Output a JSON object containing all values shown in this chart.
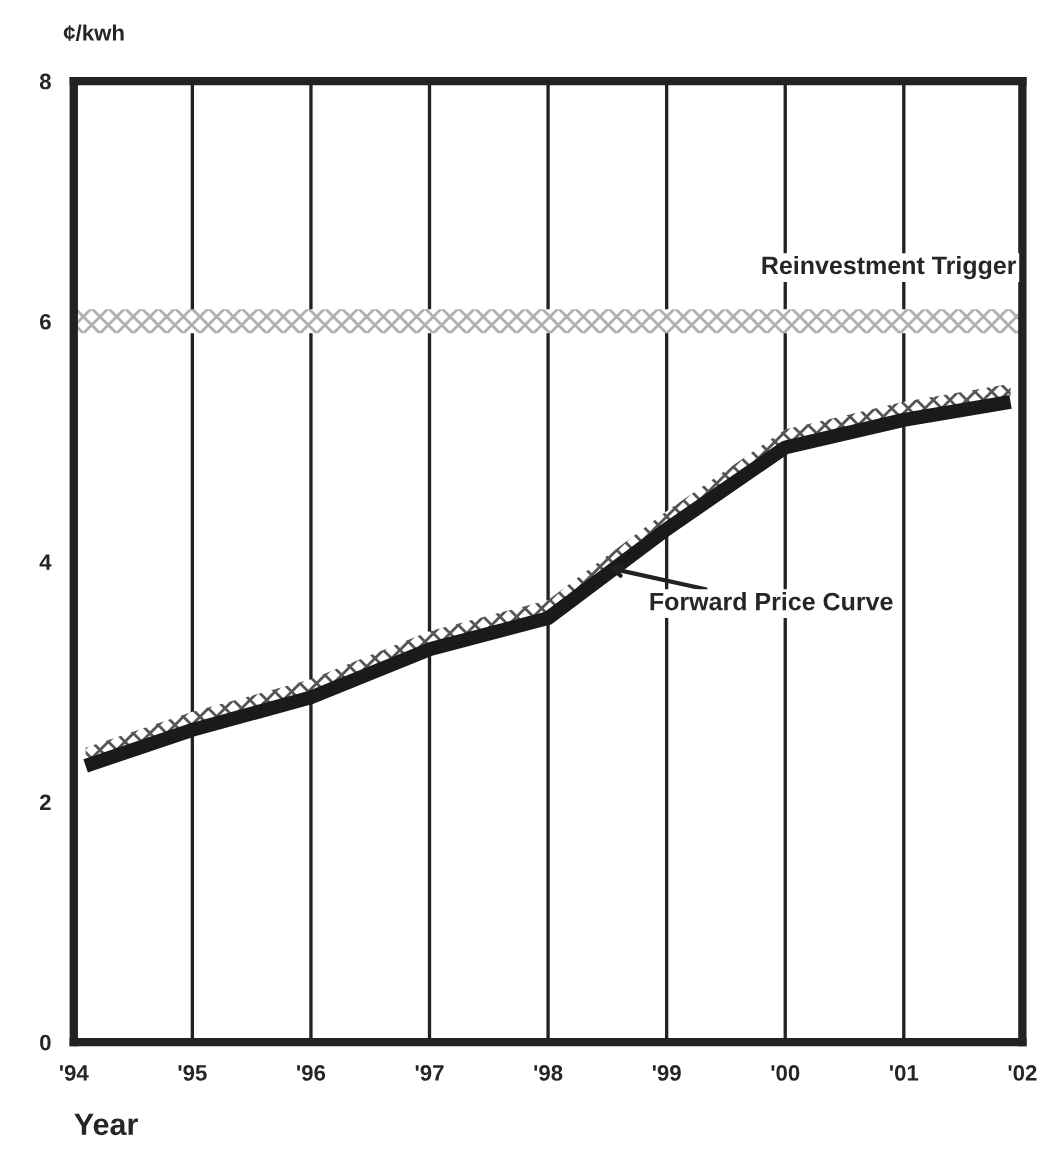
{
  "chart_data": {
    "type": "line",
    "xlabel": "Year",
    "ylabel": "¢/kwh",
    "xlim": [
      1994,
      2002
    ],
    "ylim": [
      0,
      8
    ],
    "xticks": [
      {
        "value": 1994,
        "label": "'94"
      },
      {
        "value": 1995,
        "label": "'95"
      },
      {
        "value": 1996,
        "label": "'96"
      },
      {
        "value": 1997,
        "label": "'97"
      },
      {
        "value": 1998,
        "label": "'98"
      },
      {
        "value": 1999,
        "label": "'99"
      },
      {
        "value": 2000,
        "label": "'00"
      },
      {
        "value": 2001,
        "label": "'01"
      },
      {
        "value": 2002,
        "label": "'02"
      }
    ],
    "yticks": [
      0,
      2,
      4,
      6,
      8
    ],
    "grid": "x",
    "line_style": "solid",
    "marker": "none",
    "series": [
      {
        "color": "#1a1a1a",
        "x": [
          1994.1,
          1995,
          1996,
          1997,
          1998,
          1999,
          2000,
          2001,
          2001.9
        ],
        "values": [
          2.3,
          2.6,
          2.87,
          3.27,
          3.53,
          4.27,
          4.95,
          5.18,
          5.33
        ],
        "lower": [
          2.3,
          2.6,
          2.87,
          3.27,
          3.53,
          4.27,
          4.95,
          5.18,
          5.33
        ],
        "upper": [
          2.45,
          2.75,
          3.02,
          3.42,
          3.68,
          4.42,
          5.1,
          5.33,
          5.48
        ]
      }
    ],
    "bands": [
      {
        "axis": "y",
        "from": 5.9,
        "to": 6.1,
        "label": "Reinvestment Trigger",
        "color": "#b0b0b0"
      }
    ],
    "annotations": [
      {
        "text": "Forward Price Curve",
        "x": 1998.5,
        "y": 3.95
      }
    ]
  }
}
